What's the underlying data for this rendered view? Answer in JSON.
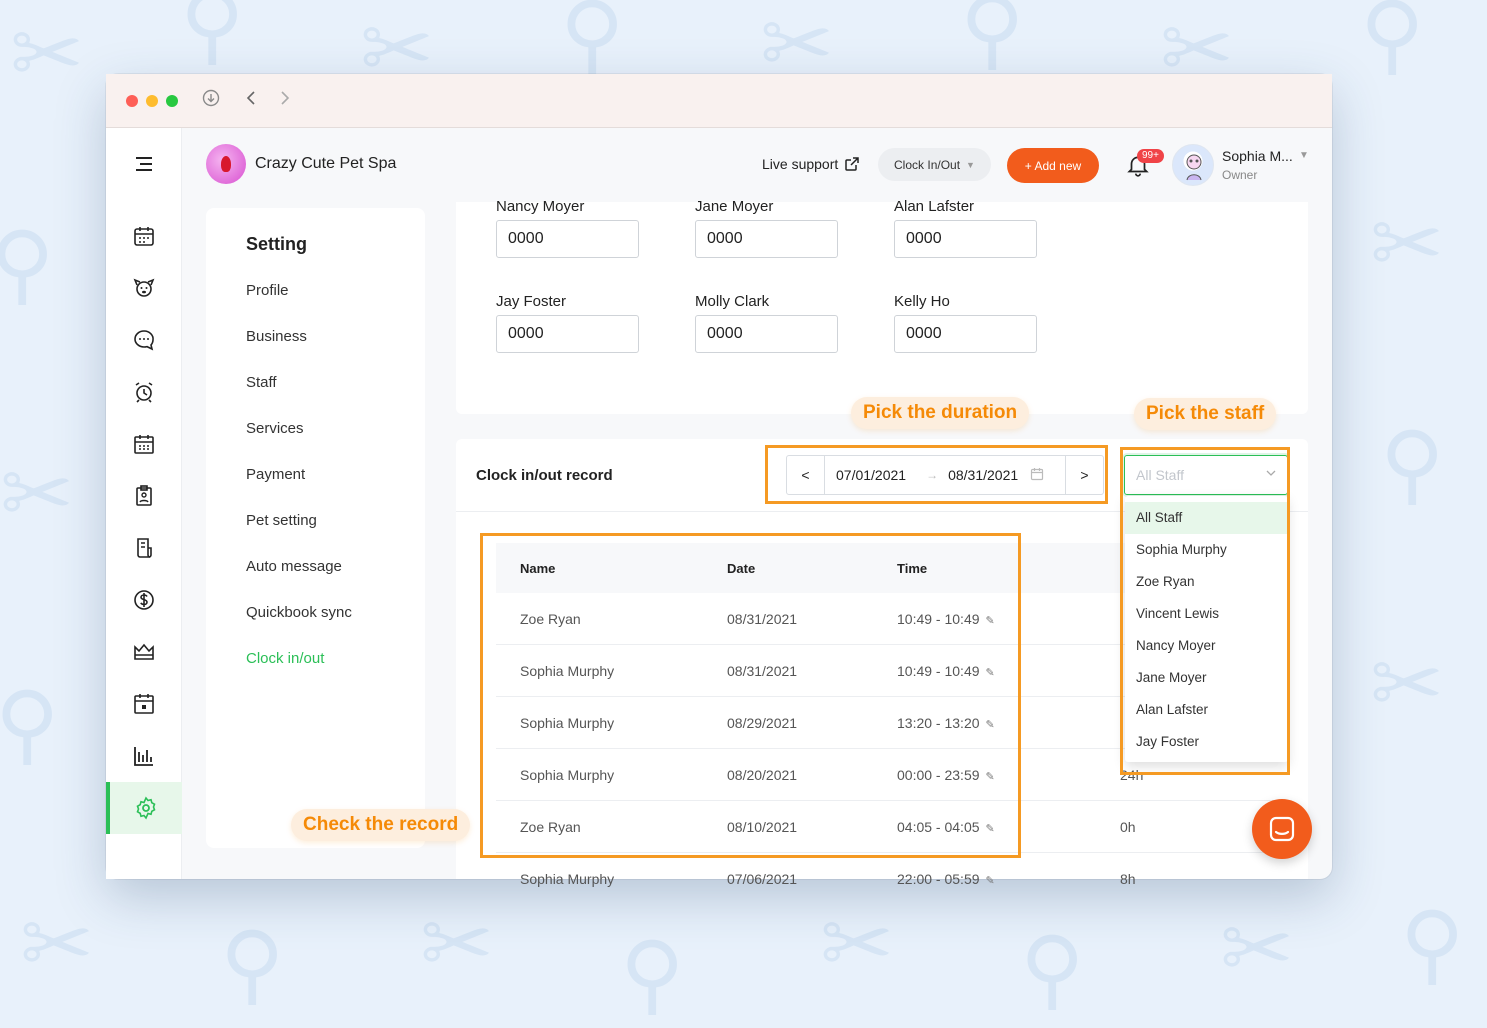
{
  "app": {
    "business_name": "Crazy Cute Pet Spa"
  },
  "header": {
    "live_support": "Live support",
    "clock_button": "Clock In/Out",
    "add_new": "+ Add new",
    "notification_count": "99+",
    "user_name": "Sophia M...",
    "user_role": "Owner"
  },
  "sidebar": {
    "icons": [
      "calendar-icon",
      "dog-icon",
      "chat-icon",
      "alarm-clock-icon",
      "schedule-icon",
      "clipboard-icon",
      "receipt-icon",
      "dollar-icon",
      "crown-icon",
      "calendar-card-icon",
      "bar-chart-icon",
      "settings-gear-icon"
    ],
    "active_icon": "settings-gear-icon"
  },
  "settings_menu": {
    "title": "Setting",
    "items": [
      "Profile",
      "Business",
      "Staff",
      "Services",
      "Payment",
      "Pet setting",
      "Auto message",
      "Quickbook sync",
      "Clock in/out"
    ],
    "active": "Clock in/out"
  },
  "pins": [
    {
      "name": "Nancy Moyer",
      "pin": "0000"
    },
    {
      "name": "Jane Moyer",
      "pin": "0000"
    },
    {
      "name": "Alan Lafster",
      "pin": "0000"
    },
    {
      "name": "Jay Foster",
      "pin": "0000"
    },
    {
      "name": "Molly Clark",
      "pin": "0000"
    },
    {
      "name": "Kelly Ho",
      "pin": "0000"
    }
  ],
  "record": {
    "title": "Clock in/out record",
    "date_prev": "<",
    "date_next": ">",
    "start_date": "07/01/2021",
    "end_date": "08/31/2021",
    "staff_placeholder": "All Staff",
    "columns": [
      "Name",
      "Date",
      "Time"
    ],
    "rows": [
      {
        "name": "Zoe Ryan",
        "date": "08/31/2021",
        "time": "10:49 - 10:49",
        "total": ""
      },
      {
        "name": "Sophia Murphy",
        "date": "08/31/2021",
        "time": "10:49 - 10:49",
        "total": ""
      },
      {
        "name": "Sophia Murphy",
        "date": "08/29/2021",
        "time": "13:20 - 13:20",
        "total": ""
      },
      {
        "name": "Sophia Murphy",
        "date": "08/20/2021",
        "time": "00:00 - 23:59",
        "total": "24h"
      },
      {
        "name": "Zoe Ryan",
        "date": "08/10/2021",
        "time": "04:05 - 04:05",
        "total": "0h"
      },
      {
        "name": "Sophia Murphy",
        "date": "07/06/2021",
        "time": "22:00 - 05:59",
        "total": "8h"
      }
    ]
  },
  "staff_dropdown": {
    "options": [
      "All Staff",
      "Sophia Murphy",
      "Zoe Ryan",
      "Vincent Lewis",
      "Nancy Moyer",
      "Jane Moyer",
      "Alan Lafster",
      "Jay Foster"
    ],
    "selected": "All Staff"
  },
  "callouts": {
    "duration": "Pick the duration",
    "staff": "Pick the staff",
    "record": "Check the record"
  },
  "colors": {
    "accent_green": "#2bbf57",
    "accent_orange": "#f25c1c",
    "annotation_orange": "#f59a23"
  }
}
